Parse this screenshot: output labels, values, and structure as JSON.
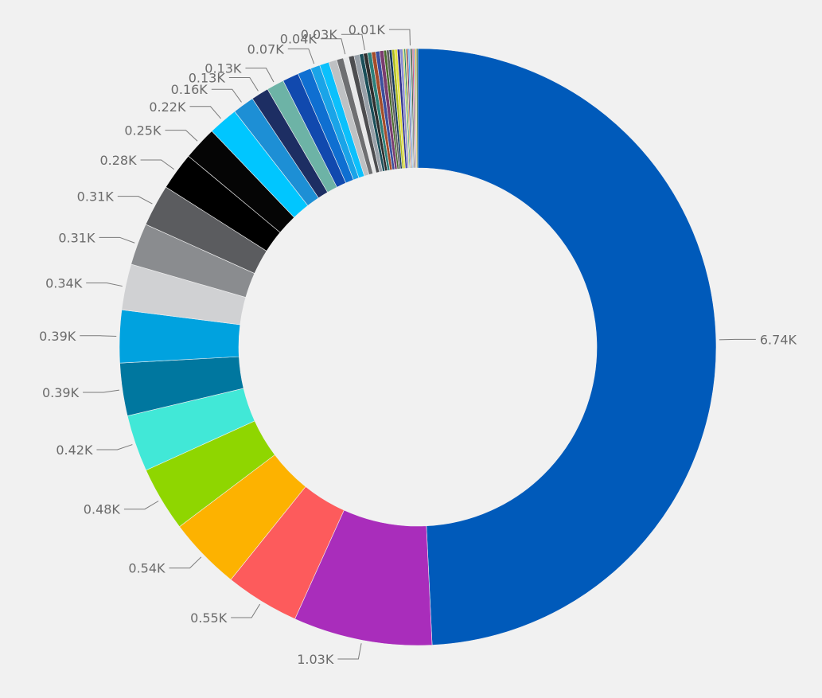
{
  "chart_data": {
    "type": "pie",
    "variant": "donut",
    "title": "",
    "legend": "none",
    "unit_suffix": "K",
    "slices": [
      {
        "label": "6.74K",
        "value": 6.74,
        "color": "#005ABA"
      },
      {
        "label": "1.03K",
        "value": 1.03,
        "color": "#A92DBB"
      },
      {
        "label": "0.55K",
        "value": 0.55,
        "color": "#FD5B5C"
      },
      {
        "label": "0.54K",
        "value": 0.54,
        "color": "#FDB200"
      },
      {
        "label": "0.48K",
        "value": 0.48,
        "color": "#8FD600"
      },
      {
        "label": "0.42K",
        "value": 0.42,
        "color": "#41E8D7"
      },
      {
        "label": "0.39K",
        "value": 0.39,
        "color": "#00779F"
      },
      {
        "label": "0.39K",
        "value": 0.39,
        "color": "#00A2DF"
      },
      {
        "label": "0.34K",
        "value": 0.34,
        "color": "#D0D1D3"
      },
      {
        "label": "0.31K",
        "value": 0.31,
        "color": "#8A8C8F"
      },
      {
        "label": "0.31K",
        "value": 0.31,
        "color": "#5B5C5F"
      },
      {
        "label": "0.28K",
        "value": 0.28,
        "color": "#000000"
      },
      {
        "label": "0.25K",
        "value": 0.25,
        "color": "#050505"
      },
      {
        "label": "0.22K",
        "value": 0.22,
        "color": "#00C6FF"
      },
      {
        "label": "0.16K",
        "value": 0.16,
        "color": "#1D8FD5"
      },
      {
        "label": "0.13K",
        "value": 0.13,
        "color": "#1D2E63"
      },
      {
        "label": "0.13K",
        "value": 0.13,
        "color": "#6DB3A6"
      },
      {
        "label": "",
        "value": 0.12,
        "color": "#1149AE"
      },
      {
        "label": "",
        "value": 0.1,
        "color": "#0F6FD1"
      },
      {
        "label": "0.07K",
        "value": 0.07,
        "color": "#1AA4E8"
      },
      {
        "label": "",
        "value": 0.07,
        "color": "#0BC0FC"
      },
      {
        "label": "",
        "value": 0.06,
        "color": "#BFC1C3"
      },
      {
        "label": "",
        "value": 0.05,
        "color": "#6E6F71"
      },
      {
        "label": "0.04K",
        "value": 0.04,
        "color": "#E7E8E9"
      },
      {
        "label": "",
        "value": 0.04,
        "color": "#4C4D50"
      },
      {
        "label": "",
        "value": 0.04,
        "color": "#98A0A8"
      },
      {
        "label": "",
        "value": 0.03,
        "color": "#1A4E58"
      },
      {
        "label": "0.03K",
        "value": 0.03,
        "color": "#2E2E2E"
      },
      {
        "label": "",
        "value": 0.03,
        "color": "#2C7F7A"
      },
      {
        "label": "",
        "value": 0.03,
        "color": "#A44C2A"
      },
      {
        "label": "",
        "value": 0.03,
        "color": "#3B4F9D"
      },
      {
        "label": "",
        "value": 0.03,
        "color": "#7A3C6E"
      },
      {
        "label": "",
        "value": 0.02,
        "color": "#496C2C"
      },
      {
        "label": "",
        "value": 0.02,
        "color": "#5E5E5E"
      },
      {
        "label": "",
        "value": 0.02,
        "color": "#16375B"
      },
      {
        "label": "",
        "value": 0.02,
        "color": "#ADBB1E"
      },
      {
        "label": "",
        "value": 0.02,
        "color": "#E6E23A"
      },
      {
        "label": "",
        "value": 0.02,
        "color": "#2D2F8A"
      },
      {
        "label": "",
        "value": 0.02,
        "color": "#8B8BD2"
      },
      {
        "label": "",
        "value": 0.01,
        "color": "#C8D94E"
      },
      {
        "label": "",
        "value": 0.01,
        "color": "#0E7C53"
      },
      {
        "label": "",
        "value": 0.01,
        "color": "#D39B44"
      },
      {
        "label": "",
        "value": 0.01,
        "color": "#5B2C6F"
      },
      {
        "label": "",
        "value": 0.01,
        "color": "#3FA9F5"
      },
      {
        "label": "0.01K",
        "value": 0.01,
        "color": "#9C9C9C"
      },
      {
        "label": "",
        "value": 0.01,
        "color": "#224D2B"
      },
      {
        "label": "",
        "value": 0.01,
        "color": "#C94F7C"
      },
      {
        "label": "",
        "value": 0.01,
        "color": "#6F8FAF"
      },
      {
        "label": "",
        "value": 0.01,
        "color": "#F2C14E"
      },
      {
        "label": "",
        "value": 0.01,
        "color": "#3A6B35"
      }
    ]
  }
}
